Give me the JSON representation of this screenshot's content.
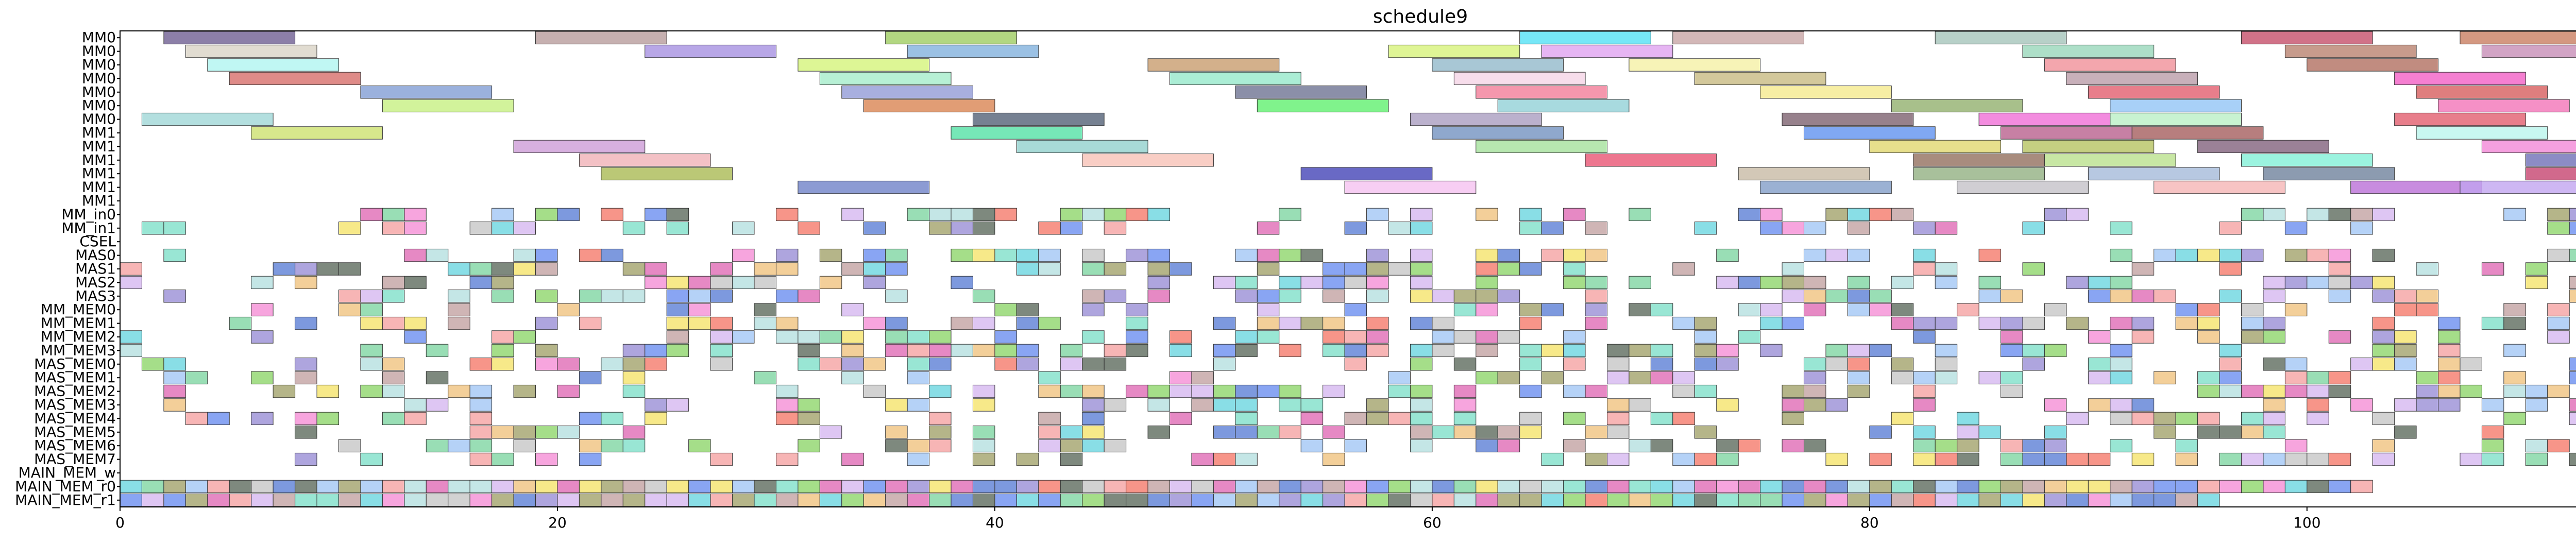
{
  "chart_data": {
    "type": "gantt",
    "title": "schedule9",
    "xlabel": "",
    "ylabel": "",
    "xlim": [
      0,
      116
    ],
    "x_ticks": [
      0,
      20,
      40,
      60,
      80,
      100
    ],
    "grid": false,
    "rows": [
      "MM0",
      "MM0",
      "MM0",
      "MM0",
      "MM0",
      "MM0",
      "MM0",
      "MM1",
      "MM1",
      "MM1",
      "MM1",
      "MM1",
      "MM1",
      "MM_in0",
      "MM_in1",
      "CSEL",
      "MAS0",
      "MAS1",
      "MAS2",
      "MAS3",
      "MM_MEM0",
      "MM_MEM1",
      "MM_MEM2",
      "MM_MEM3",
      "MAS_MEM0",
      "MAS_MEM1",
      "MAS_MEM2",
      "MAS_MEM3",
      "MAS_MEM4",
      "MAS_MEM5",
      "MAS_MEM6",
      "MAS_MEM7",
      "MAIN_MEM_w",
      "MAIN_MEM_r0",
      "MAIN_MEM_r1"
    ],
    "bars": [
      {
        "row": 0,
        "start": 2,
        "end": 8,
        "color": "#6b5b8f"
      },
      {
        "row": 0,
        "start": 19,
        "end": 25,
        "color": "#b69a9a"
      },
      {
        "row": 0,
        "start": 35,
        "end": 41,
        "color": "#9ccc5e"
      },
      {
        "row": 0,
        "start": 64,
        "end": 70,
        "color": "#4fe0f5"
      },
      {
        "row": 0,
        "start": 71,
        "end": 77,
        "color": "#c7a3a3"
      },
      {
        "row": 0,
        "start": 83,
        "end": 89,
        "color": "#a3c3b9"
      },
      {
        "row": 0,
        "start": 97,
        "end": 103,
        "color": "#c44a66"
      },
      {
        "row": 0,
        "start": 107,
        "end": 113,
        "color": "#c87b5e"
      },
      {
        "row": 1,
        "start": 3,
        "end": 9,
        "color": "#d9d2c4"
      },
      {
        "row": 1,
        "start": 24,
        "end": 30,
        "color": "#a48ee0"
      },
      {
        "row": 1,
        "start": 36,
        "end": 42,
        "color": "#7fb0dd"
      },
      {
        "row": 1,
        "start": 58,
        "end": 64,
        "color": "#d6f277"
      },
      {
        "row": 1,
        "start": 65,
        "end": 71,
        "color": "#dfa0f0"
      },
      {
        "row": 1,
        "start": 87,
        "end": 93,
        "color": "#96d6b8"
      },
      {
        "row": 1,
        "start": 99,
        "end": 105,
        "color": "#b77f6b"
      },
      {
        "row": 1,
        "start": 108,
        "end": 114,
        "color": "#c58ab5"
      },
      {
        "row": 2,
        "start": 4,
        "end": 10,
        "color": "#aef5ef"
      },
      {
        "row": 2,
        "start": 31,
        "end": 37,
        "color": "#d4f377"
      },
      {
        "row": 2,
        "start": 47,
        "end": 53,
        "color": "#c79a6a"
      },
      {
        "row": 2,
        "start": 60,
        "end": 66,
        "color": "#8fb7c9"
      },
      {
        "row": 2,
        "start": 69,
        "end": 75,
        "color": "#f5f0a3"
      },
      {
        "row": 2,
        "start": 88,
        "end": 94,
        "color": "#f08d96"
      },
      {
        "row": 2,
        "start": 100,
        "end": 106,
        "color": "#b06b5c"
      },
      {
        "row": 3,
        "start": 5,
        "end": 11,
        "color": "#d66a66"
      },
      {
        "row": 3,
        "start": 32,
        "end": 38,
        "color": "#a3ecc9"
      },
      {
        "row": 3,
        "start": 48,
        "end": 54,
        "color": "#93e8c9"
      },
      {
        "row": 3,
        "start": 61,
        "end": 67,
        "color": "#f5d4e6"
      },
      {
        "row": 3,
        "start": 72,
        "end": 78,
        "color": "#c7b87f"
      },
      {
        "row": 3,
        "start": 89,
        "end": 95,
        "color": "#b89aa7"
      },
      {
        "row": 3,
        "start": 104,
        "end": 110,
        "color": "#f25bc4"
      },
      {
        "row": 4,
        "start": 11,
        "end": 17,
        "color": "#7f9bd4"
      },
      {
        "row": 4,
        "start": 33,
        "end": 39,
        "color": "#8f98d6"
      },
      {
        "row": 4,
        "start": 51,
        "end": 57,
        "color": "#6a6f8f"
      },
      {
        "row": 4,
        "start": 62,
        "end": 68,
        "color": "#f27a96"
      },
      {
        "row": 4,
        "start": 75,
        "end": 81,
        "color": "#f5e98a"
      },
      {
        "row": 4,
        "start": 90,
        "end": 96,
        "color": "#e25a6a"
      },
      {
        "row": 4,
        "start": 105,
        "end": 111,
        "color": "#d65a5a"
      },
      {
        "row": 5,
        "start": 12,
        "end": 18,
        "color": "#c5f07f"
      },
      {
        "row": 5,
        "start": 34,
        "end": 40,
        "color": "#d9824e"
      },
      {
        "row": 5,
        "start": 52,
        "end": 58,
        "color": "#5cf06b"
      },
      {
        "row": 5,
        "start": 63,
        "end": 69,
        "color": "#8fcfd6"
      },
      {
        "row": 5,
        "start": 81,
        "end": 87,
        "color": "#8fae6a"
      },
      {
        "row": 5,
        "start": 91,
        "end": 97,
        "color": "#8fc3f5"
      },
      {
        "row": 5,
        "start": 106,
        "end": 112,
        "color": "#f271b6"
      },
      {
        "row": 6,
        "start": 1,
        "end": 7,
        "color": "#9ed6d6"
      },
      {
        "row": 6,
        "start": 39,
        "end": 45,
        "color": "#4f5e73"
      },
      {
        "row": 6,
        "start": 59,
        "end": 65,
        "color": "#a89bbf"
      },
      {
        "row": 6,
        "start": 76,
        "end": 82,
        "color": "#7a5e6b"
      },
      {
        "row": 6,
        "start": 85,
        "end": 91,
        "color": "#f06bd6"
      },
      {
        "row": 6,
        "start": 91,
        "end": 97,
        "color": "#b8f0c4"
      },
      {
        "row": 6,
        "start": 104,
        "end": 110,
        "color": "#e25a6a"
      },
      {
        "row": 7,
        "start": 6,
        "end": 12,
        "color": "#cce06b"
      },
      {
        "row": 7,
        "start": 38,
        "end": 44,
        "color": "#4fe0a3"
      },
      {
        "row": 7,
        "start": 60,
        "end": 66,
        "color": "#6f8fbf"
      },
      {
        "row": 7,
        "start": 77,
        "end": 83,
        "color": "#5c8ff0"
      },
      {
        "row": 7,
        "start": 86,
        "end": 92,
        "color": "#b75c8a"
      },
      {
        "row": 7,
        "start": 92,
        "end": 98,
        "color": "#a35a5a"
      },
      {
        "row": 7,
        "start": 105,
        "end": 111,
        "color": "#b8f5ec"
      },
      {
        "row": 8,
        "start": 18,
        "end": 24,
        "color": "#cc9ad6"
      },
      {
        "row": 8,
        "start": 41,
        "end": 47,
        "color": "#8fd0cc"
      },
      {
        "row": 8,
        "start": 62,
        "end": 68,
        "color": "#a3e09a"
      },
      {
        "row": 8,
        "start": 80,
        "end": 86,
        "color": "#e0d66b"
      },
      {
        "row": 8,
        "start": 87,
        "end": 93,
        "color": "#b5c25e"
      },
      {
        "row": 8,
        "start": 95,
        "end": 101,
        "color": "#7f5e7a"
      },
      {
        "row": 8,
        "start": 108,
        "end": 114,
        "color": "#f285d6"
      },
      {
        "row": 9,
        "start": 21,
        "end": 27,
        "color": "#f0b0b5"
      },
      {
        "row": 9,
        "start": 44,
        "end": 50,
        "color": "#f7c0b5"
      },
      {
        "row": 9,
        "start": 67,
        "end": 73,
        "color": "#e84f6f"
      },
      {
        "row": 9,
        "start": 82,
        "end": 88,
        "color": "#8f6b5a"
      },
      {
        "row": 9,
        "start": 88,
        "end": 94,
        "color": "#b8e08a"
      },
      {
        "row": 9,
        "start": 97,
        "end": 103,
        "color": "#7ff0d6"
      },
      {
        "row": 9,
        "start": 110,
        "end": 116,
        "color": "#6b6bb5"
      },
      {
        "row": 10,
        "start": 22,
        "end": 28,
        "color": "#a8b84f"
      },
      {
        "row": 10,
        "start": 54,
        "end": 60,
        "color": "#3f3fb5"
      },
      {
        "row": 10,
        "start": 74,
        "end": 80,
        "color": "#c7b8a3"
      },
      {
        "row": 10,
        "start": 82,
        "end": 88,
        "color": "#8fae7f"
      },
      {
        "row": 10,
        "start": 90,
        "end": 96,
        "color": "#a3b8d9"
      },
      {
        "row": 10,
        "start": 98,
        "end": 104,
        "color": "#6b7f9a"
      },
      {
        "row": 10,
        "start": 110,
        "end": 116,
        "color": "#c43f6b"
      },
      {
        "row": 11,
        "start": 31,
        "end": 37,
        "color": "#6b7fc7"
      },
      {
        "row": 11,
        "start": 56,
        "end": 62,
        "color": "#f5c0f0"
      },
      {
        "row": 11,
        "start": 75,
        "end": 81,
        "color": "#7f9bc7"
      },
      {
        "row": 11,
        "start": 84,
        "end": 90,
        "color": "#c3c0c7"
      },
      {
        "row": 11,
        "start": 93,
        "end": 99,
        "color": "#f5b3b3"
      },
      {
        "row": 11,
        "start": 102,
        "end": 108,
        "color": "#b86bd6"
      },
      {
        "row": 11,
        "start": 107,
        "end": 113,
        "color": "#c0a3f0"
      }
    ]
  }
}
